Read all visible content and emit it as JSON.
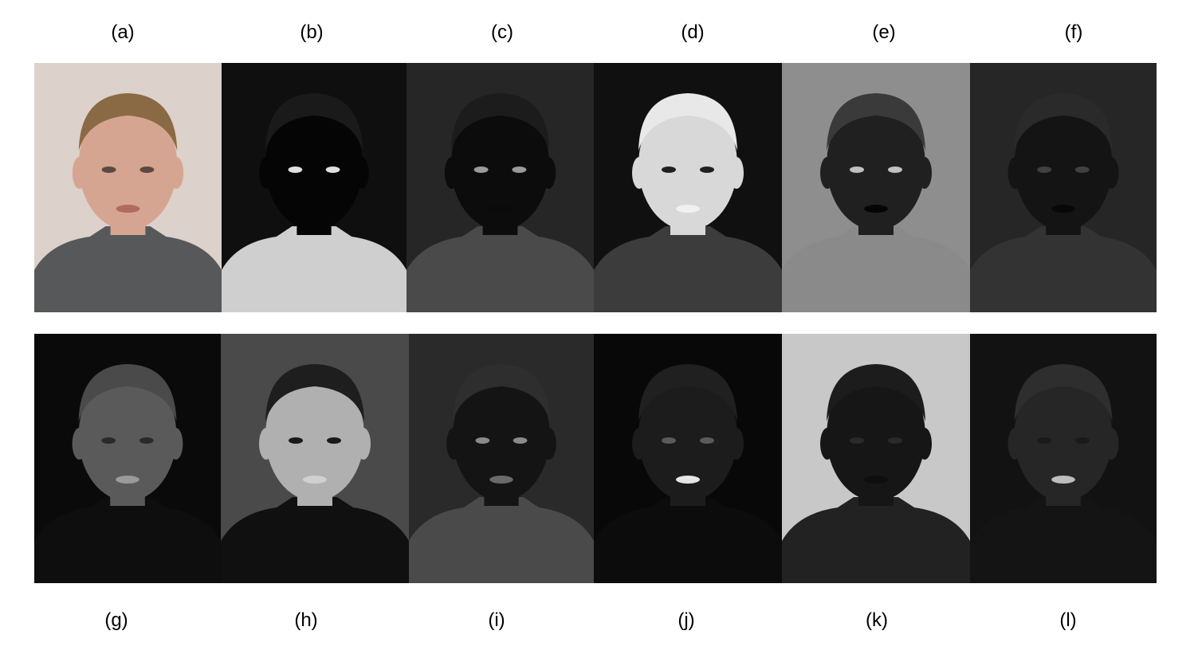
{
  "labels_top": [
    "(a)",
    "(b)",
    "(c)",
    "(d)",
    "(e)",
    "(f)"
  ],
  "labels_bottom": [
    "(g)",
    "(h)",
    "(i)",
    "(j)",
    "(k)",
    "(l)"
  ],
  "panels_top": [
    {
      "id": "a",
      "background": "#dcd1cb",
      "face": "#d6a592",
      "hair": "#8a6a45",
      "sweater": "#57585a",
      "eyes": "#5a4a40",
      "lips": "#b06a60"
    },
    {
      "id": "b",
      "background": "#0f0f0f",
      "face": "#050505",
      "hair": "#1a1a1a",
      "sweater": "#cfcfcf",
      "eyes": "#e0e0e0",
      "lips": "#050505"
    },
    {
      "id": "c",
      "background": "#262626",
      "face": "#0c0c0c",
      "hair": "#1c1c1c",
      "sweater": "#4a4a4a",
      "eyes": "#9a9a9a",
      "lips": "#0a0a0a"
    },
    {
      "id": "d",
      "background": "#101010",
      "face": "#d8d8d8",
      "hair": "#e8e8e8",
      "sweater": "#3c3c3c",
      "eyes": "#202020",
      "lips": "#f0f0f0"
    },
    {
      "id": "e",
      "background": "#8e8e8e",
      "face": "#202020",
      "hair": "#3a3a3a",
      "sweater": "#8a8a8a",
      "eyes": "#c0c0c0",
      "lips": "#050505"
    },
    {
      "id": "f",
      "background": "#262626",
      "face": "#141414",
      "hair": "#2a2a2a",
      "sweater": "#333333",
      "eyes": "#404040",
      "lips": "#080808"
    }
  ],
  "panels_bottom": [
    {
      "id": "g",
      "background": "#0a0a0a",
      "face": "#5a5a5a",
      "hair": "#4a4a4a",
      "sweater": "#0e0e0e",
      "eyes": "#2a2a2a",
      "lips": "#9a9a9a"
    },
    {
      "id": "h",
      "background": "#4a4a4a",
      "face": "#b0b0b0",
      "hair": "#1e1e1e",
      "sweater": "#101010",
      "eyes": "#1a1a1a",
      "lips": "#d0d0d0"
    },
    {
      "id": "i",
      "background": "#2a2a2a",
      "face": "#141414",
      "hair": "#2e2e2e",
      "sweater": "#4a4a4a",
      "eyes": "#8a8a8a",
      "lips": "#6a6a6a"
    },
    {
      "id": "j",
      "background": "#080808",
      "face": "#1c1c1c",
      "hair": "#202020",
      "sweater": "#0c0c0c",
      "eyes": "#5a5a5a",
      "lips": "#e6e6e6"
    },
    {
      "id": "k",
      "background": "#c8c8c8",
      "face": "#161616",
      "hair": "#1c1c1c",
      "sweater": "#222222",
      "eyes": "#2a2a2a",
      "lips": "#0e0e0e"
    },
    {
      "id": "l",
      "background": "#121212",
      "face": "#262626",
      "hair": "#2e2e2e",
      "sweater": "#141414",
      "eyes": "#1a1a1a",
      "lips": "#bdbdbd"
    }
  ]
}
